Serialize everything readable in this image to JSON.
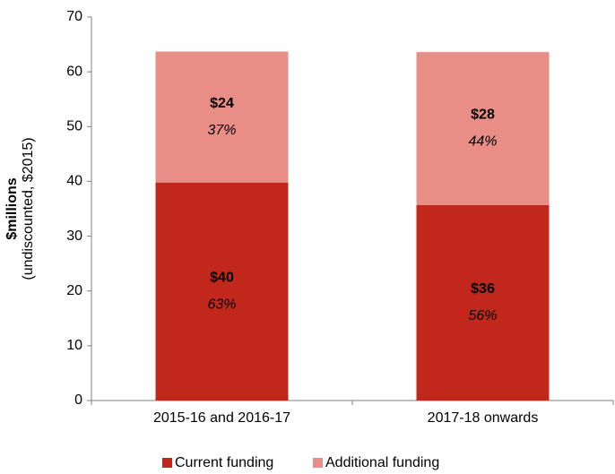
{
  "chart_data": {
    "type": "stacked_bar",
    "y_label": "$millions",
    "y_sublabel": "(undiscounted, $2015)",
    "categories": [
      "2015-16 and 2016-17",
      "2017-18 onwards"
    ],
    "series": [
      {
        "name": "Current funding",
        "color": "#c1281b",
        "values": [
          39.8,
          35.7
        ],
        "value_labels": [
          "$40",
          "$36"
        ],
        "share_labels": [
          "63%",
          "56%"
        ]
      },
      {
        "name": "Additional funding",
        "color": "#e88e87",
        "values": [
          23.9,
          27.9
        ],
        "value_labels": [
          "$24",
          "$28"
        ],
        "share_labels": [
          "37%",
          "44%"
        ]
      }
    ],
    "ylim": [
      0,
      70
    ],
    "yticks": [
      0,
      10,
      20,
      30,
      40,
      50,
      60,
      70
    ],
    "grid": false,
    "legend": "bottom"
  }
}
